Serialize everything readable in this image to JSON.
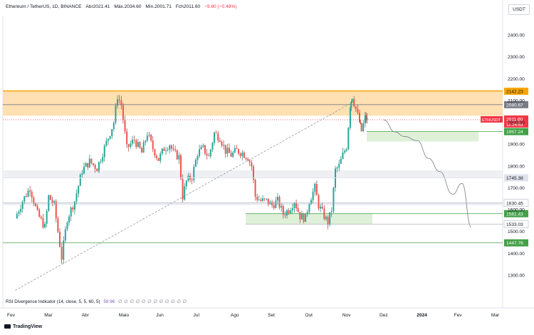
{
  "header": {
    "symbol": "Ethereum / TetherUS, 1D, BINANCE",
    "open_label": "Abr",
    "open": "2021.41",
    "high_label": "Máx.",
    "high": "2034.60",
    "low_label": "Mín.",
    "low": "2001.71",
    "close_label": "Fch",
    "close": "2011.60",
    "change": "−9.80 (−0.48%)"
  },
  "currency": "USDT",
  "indicator": {
    "label": "RSI Divergence Indicator (14, close, 5, 5, 60, 5)",
    "value": "59.96",
    "dots": "∅ ∅ ∅ ∅ ∅ ∅ ∅ ∅ ∅ ∅ ∅ ∅"
  },
  "brand": "TradingView",
  "chart_data": {
    "type": "candlestick",
    "title": "",
    "x_ticks": [
      "Fev",
      "Mar",
      "Abr",
      "Maio",
      "Jun",
      "Jul",
      "Ago",
      "Set",
      "Out",
      "Nov",
      "Dez",
      "2024",
      "Fev",
      "Mar"
    ],
    "y_ticks": [
      1300,
      1400,
      1500,
      1600,
      1700,
      1800,
      1900,
      2000,
      2100,
      2200,
      2300,
      2400
    ],
    "y_range": [
      1215,
      2590
    ],
    "price_levels": [
      {
        "label": "2142.23",
        "value": 2142.23,
        "color": "#f7a600",
        "text_color": "#131722"
      },
      {
        "label": "2080.67",
        "value": 2080.67,
        "color": "#787b86",
        "text_color": "#ffffff"
      },
      {
        "label": "1957.24",
        "value": 1957.24,
        "color": "#43a047",
        "text_color": "#ffffff"
      },
      {
        "label": "1745.38",
        "value": 1745.38,
        "color": "#e0e3eb",
        "text_color": "#131722"
      },
      {
        "label": "1630.45",
        "value": 1630.45,
        "color": "#ffffff",
        "text_color": "#131722"
      },
      {
        "label": "1581.43",
        "value": 1581.43,
        "color": "#43a047",
        "text_color": "#ffffff"
      },
      {
        "label": "1533.03",
        "value": 1533.03,
        "color": "#ffffff",
        "text_color": "#131722"
      },
      {
        "label": "1447.76",
        "value": 1447.76,
        "color": "#43a047",
        "text_color": "#ffffff"
      }
    ],
    "last_price": {
      "symbol": "ETHUSDT",
      "price": "2011.60",
      "countdown": "11:26:53",
      "value": 2011.6,
      "color": "#f23645"
    },
    "zones": [
      {
        "name": "supply-zone",
        "from": 2030,
        "to": 2145,
        "color": "#ffe0b2"
      },
      {
        "name": "demand-zone-upper",
        "from": 1912,
        "to": 1957,
        "color": "#dff0d8"
      },
      {
        "name": "grey-band-upper",
        "from": 1745,
        "to": 1780,
        "color": "#eef0f3"
      },
      {
        "name": "grey-band-lower",
        "from": 1620,
        "to": 1632,
        "color": "#eef0f3"
      },
      {
        "name": "demand-zone-lower",
        "from": 1533,
        "to": 1583,
        "color": "#dff0d8"
      }
    ],
    "projection_path": [
      [
        2011,
        11
      ],
      [
        1956,
        11.3
      ],
      [
        1935,
        11.55
      ],
      [
        1916,
        11.9
      ],
      [
        1835,
        12.2
      ],
      [
        1775,
        12.5
      ],
      [
        1670,
        12.85
      ],
      [
        1720,
        13.1
      ],
      [
        1520,
        13.35
      ]
    ],
    "trendline": {
      "from": [
        1230,
        1.1
      ],
      "to": [
        2095,
        10.2
      ]
    },
    "candles_ohlc_monthly_path": [
      [
        1.1,
        1560
      ],
      [
        1.3,
        1640
      ],
      [
        1.5,
        1700
      ],
      [
        1.7,
        1580
      ],
      [
        1.9,
        1520
      ],
      [
        2.0,
        1660
      ],
      [
        2.15,
        1620
      ],
      [
        2.25,
        1500
      ],
      [
        2.35,
        1380
      ],
      [
        2.5,
        1560
      ],
      [
        2.7,
        1640
      ],
      [
        2.9,
        1780
      ],
      [
        3.1,
        1820
      ],
      [
        3.3,
        1790
      ],
      [
        3.45,
        1860
      ],
      [
        3.6,
        1930
      ],
      [
        3.75,
        2000
      ],
      [
        3.85,
        2120
      ],
      [
        3.95,
        2080
      ],
      [
        4.1,
        1880
      ],
      [
        4.3,
        1920
      ],
      [
        4.5,
        1860
      ],
      [
        4.65,
        1950
      ],
      [
        4.8,
        1880
      ],
      [
        4.95,
        1830
      ],
      [
        5.1,
        1880
      ],
      [
        5.25,
        1900
      ],
      [
        5.35,
        1860
      ],
      [
        5.5,
        1840
      ],
      [
        5.6,
        1660
      ],
      [
        5.7,
        1730
      ],
      [
        5.85,
        1750
      ],
      [
        6.0,
        1860
      ],
      [
        6.15,
        1880
      ],
      [
        6.3,
        1840
      ],
      [
        6.45,
        1950
      ],
      [
        6.6,
        1930
      ],
      [
        6.75,
        1870
      ],
      [
        6.9,
        1850
      ],
      [
        7.05,
        1870
      ],
      [
        7.2,
        1860
      ],
      [
        7.35,
        1840
      ],
      [
        7.45,
        1800
      ],
      [
        7.55,
        1660
      ],
      [
        7.7,
        1640
      ],
      [
        7.85,
        1640
      ],
      [
        8.0,
        1620
      ],
      [
        8.15,
        1640
      ],
      [
        8.3,
        1580
      ],
      [
        8.45,
        1600
      ],
      [
        8.6,
        1640
      ],
      [
        8.75,
        1570
      ],
      [
        8.9,
        1560
      ],
      [
        9.0,
        1640
      ],
      [
        9.15,
        1700
      ],
      [
        9.25,
        1620
      ],
      [
        9.4,
        1570
      ],
      [
        9.5,
        1540
      ],
      [
        9.6,
        1600
      ],
      [
        9.7,
        1780
      ],
      [
        9.8,
        1800
      ],
      [
        9.9,
        1850
      ],
      [
        10.0,
        1890
      ],
      [
        10.1,
        2080
      ],
      [
        10.15,
        2120
      ],
      [
        10.25,
        2060
      ],
      [
        10.35,
        2000
      ],
      [
        10.4,
        1960
      ],
      [
        10.5,
        2020
      ],
      [
        10.55,
        2011
      ]
    ]
  }
}
